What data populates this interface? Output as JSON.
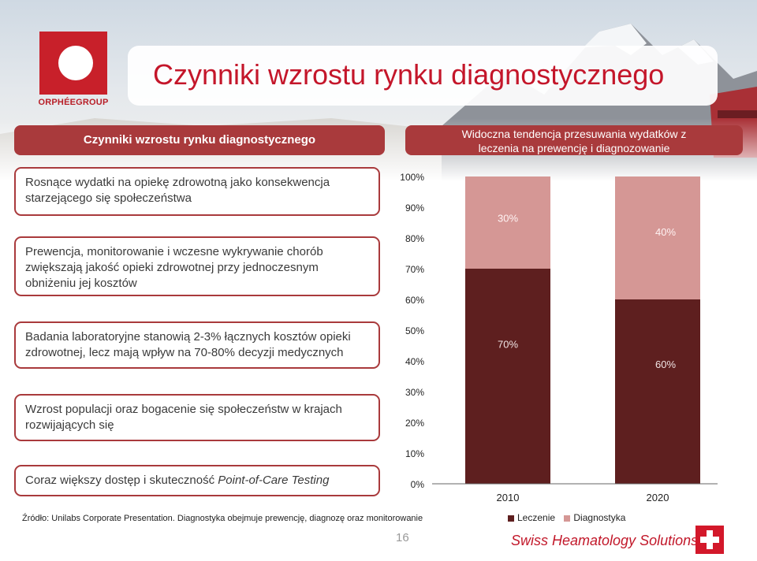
{
  "brand": {
    "logo_name": "ORPHÉEGROUP",
    "page_number": "16",
    "footer_brand": "Swiss Heamatology Solutions"
  },
  "colors": {
    "accent": "#a93a3c",
    "title": "#c4162a",
    "leczenie": "#5e1f1f",
    "diagnostyka": "#d59795"
  },
  "title": "Czynniki wzrostu rynku diagnostycznego",
  "left_header": "Czynniki wzrostu rynku diagnostycznego",
  "right_header": {
    "line1": "Widoczna tendencja przesuwania wydatków z",
    "line2": "leczenia na prewencję i diagnozowanie"
  },
  "factors": {
    "f1": "Rosnące wydatki na opiekę zdrowotną jako konsekwencja starzejącego się społeczeństwa",
    "f2": "Prewencja, monitorowanie i wczesne wykrywanie chorób zwiększają jakość opieki zdrowotnej przy jednoczesnym obniżeniu jej kosztów",
    "f3": "Badania laboratoryjne stanowią 2-3% łącznych kosztów opieki zdrowotnej, lecz mają wpływ na 70-80% decyzji medycznych",
    "f4": "Wzrost populacji oraz bogacenie się społeczeństw w krajach rozwijających się",
    "f5_prefix": "Coraz większy dostęp i skuteczność ",
    "f5_italic": "Point-of-Care Testing"
  },
  "source": "Źródło: Unilabs Corporate Presentation. Diagnostyka obejmuje prewencję, diagnozę oraz monitorowanie",
  "chart_data": {
    "type": "bar",
    "stacked": true,
    "categories": [
      "2010",
      "2020"
    ],
    "series": [
      {
        "name": "Leczenie",
        "values": [
          70,
          60
        ],
        "labels": [
          "70%",
          "60%"
        ],
        "color": "#5e1f1f"
      },
      {
        "name": "Diagnostyka",
        "values": [
          30,
          40
        ],
        "labels": [
          "30%",
          "40%"
        ],
        "color": "#d59795"
      }
    ],
    "ylim": [
      0,
      100
    ],
    "yticks": [
      "0%",
      "10%",
      "20%",
      "30%",
      "40%",
      "50%",
      "60%",
      "70%",
      "80%",
      "90%",
      "100%"
    ],
    "legend_position": "bottom"
  }
}
